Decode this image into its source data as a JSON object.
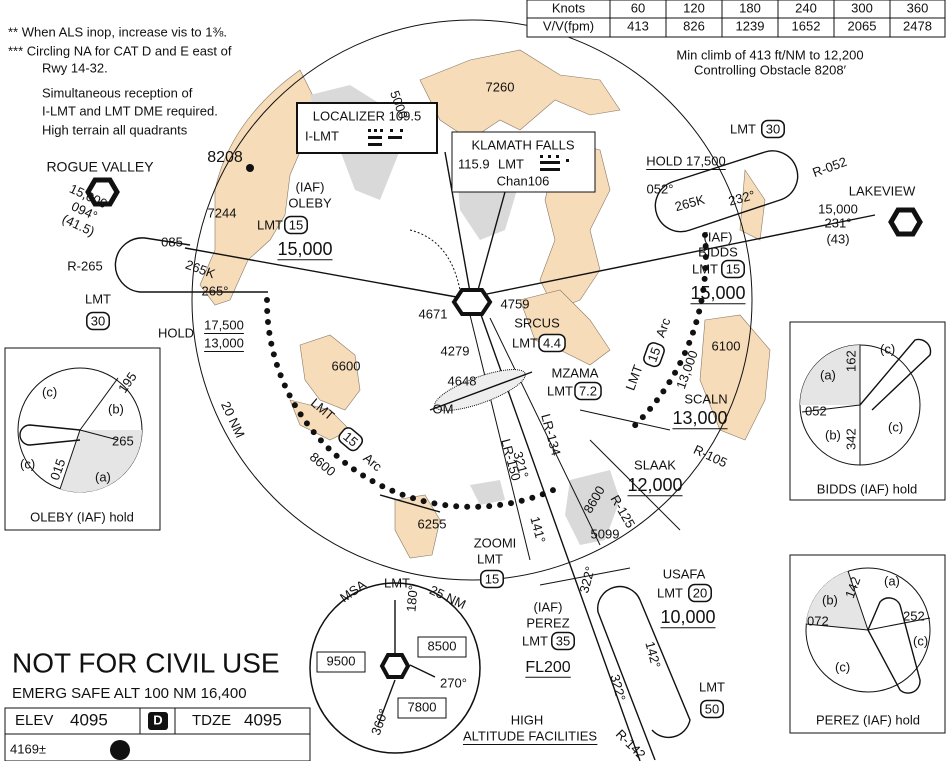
{
  "notes": [
    "** When ALS inop, increase vis to 1⅜.",
    "*** Circling NA for CAT D and E east of",
    "Rwy 14-32.",
    "Simultaneous reception of",
    "I-LMT and LMT DME required.",
    "High terrain all quadrants"
  ],
  "climb_table": {
    "rows": [
      [
        "Knots",
        "60",
        "120",
        "180",
        "240",
        "300",
        "360"
      ],
      [
        "V/V(fpm)",
        "413",
        "826",
        "1239",
        "1652",
        "2065",
        "2478"
      ]
    ],
    "notes": [
      "Min climb of 413 ft/NM to 12,200",
      "Controlling Obstacle 8208′"
    ]
  },
  "localizer": {
    "title": "LOCALIZER 109.5",
    "ident": "I-LMT"
  },
  "vortac": {
    "name": "KLAMATH FALLS",
    "freq": "115.9",
    "ident": "LMT",
    "channel": "Chan106"
  },
  "map_labels": [
    "ROGUE VALLEY",
    "15,000",
    "094°",
    "(41.5)",
    "R-265",
    "085",
    "265K",
    "265°",
    "LMT",
    "30",
    "HOLD",
    "17,500",
    "13,000",
    "8208",
    "7244",
    "(IAF)",
    "OLEBY",
    "LMT",
    "15",
    "15,000",
    "7260",
    "5000",
    "LMT",
    "30",
    "HOLD 17,500",
    "052°",
    "265K",
    "232°",
    "R-052",
    "LAKEVIEW",
    "15,000",
    "231°",
    "(43)",
    "(IAF)",
    "BIDDS",
    "LMT",
    "15",
    "15,000",
    "4671",
    "4759",
    "SRCUS",
    "LMT",
    "4.4",
    "4279",
    "4648",
    "MZAMA",
    "LMT",
    "7.2",
    "OM",
    "6600",
    "LMT",
    "15",
    "Arc",
    "20 NM",
    "8600",
    "6100",
    "LMT",
    "15",
    "Arc",
    "13,000",
    "SCALN",
    "13,000",
    "R-105",
    "SLAAK",
    "12,000",
    "R-125",
    "LR-150",
    "LR-134",
    "321°",
    "141°",
    "8600",
    "5099",
    "6255",
    "ZOOMI",
    "LMT",
    "15",
    "USAFA",
    "LMT",
    "20",
    "10,000",
    "(IAF)",
    "PEREZ",
    "LMT",
    "35",
    "FL200",
    "322°",
    "142°",
    "322°",
    "LMT",
    "50",
    "HIGH",
    "ALTITUDE FACILITIES",
    "R-142"
  ],
  "holds": {
    "oleby": {
      "labels": [
        "(c)",
        "195",
        "(b)",
        "265",
        "(c)",
        "015",
        "(a)"
      ],
      "title": "OLEBY (IAF) hold"
    },
    "bidds": {
      "labels": [
        "162",
        "(c)",
        "(a)",
        "052",
        "(b)",
        "342",
        "(c)"
      ],
      "title": "BIDDS (IAF) hold"
    },
    "perez": {
      "labels": [
        "(a)",
        "(b)",
        "142",
        "072",
        "252",
        "(c)",
        "(c)"
      ],
      "title": "PEREZ (IAF) hold"
    }
  },
  "msa": {
    "title": "MSA",
    "ident": "LMT",
    "radius": "25 NM",
    "labels": [
      "180°",
      "8500",
      "9500",
      "270°",
      "7800",
      "360°"
    ]
  },
  "footer": {
    "warning": "NOT FOR CIVIL USE",
    "emerg": "EMERG SAFE ALT 100 NM 16,400",
    "elev_label": "ELEV",
    "elev": "4095",
    "d": "D",
    "tdze_label": "TDZE",
    "tdze": "4095",
    "obstacle": "4169±"
  }
}
